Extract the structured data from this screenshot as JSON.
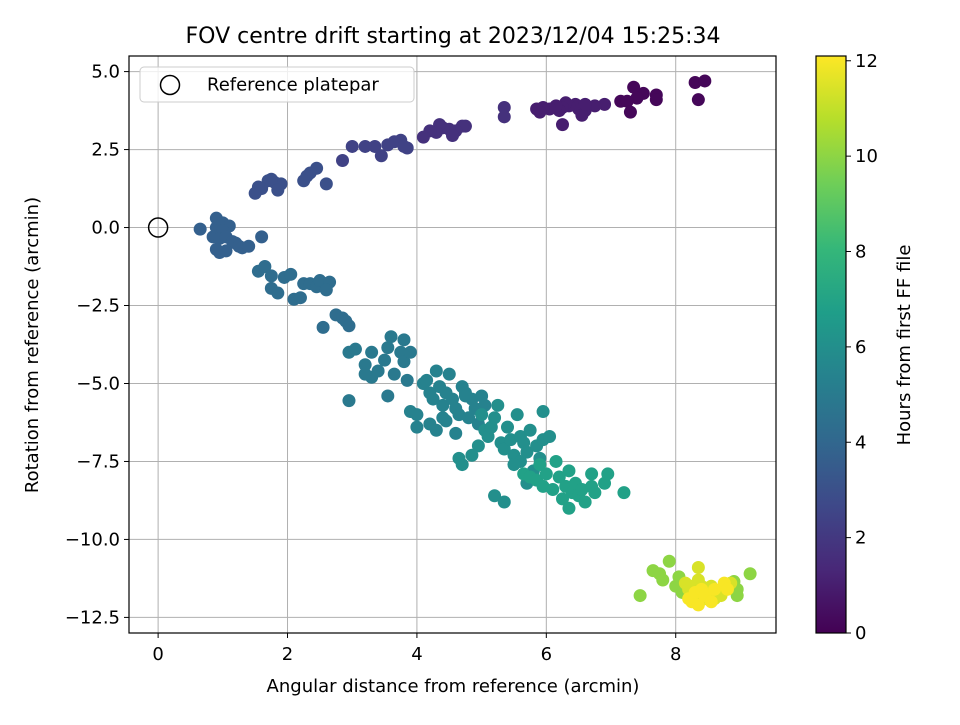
{
  "chart_data": {
    "type": "scatter",
    "title": "FOV centre drift starting at 2023/12/04 15:25:34",
    "xlabel": "Angular distance from reference (arcmin)",
    "ylabel": "Rotation from reference (arcmin)",
    "xlim": [
      -0.45,
      9.55
    ],
    "ylim": [
      -13.0,
      5.5
    ],
    "xticks": [
      0,
      2,
      4,
      6,
      8
    ],
    "xtick_labels": [
      "0",
      "2",
      "4",
      "6",
      "8"
    ],
    "yticks": [
      5.0,
      2.5,
      0.0,
      -2.5,
      -5.0,
      -7.5,
      -10.0,
      -12.5
    ],
    "ytick_labels": [
      "5.0",
      "2.5",
      "0.0",
      "−2.5",
      "−5.0",
      "−7.5",
      "−10.0",
      "−12.5"
    ],
    "grid": true,
    "legend": {
      "position": "upper-left",
      "label": "Reference platepar",
      "marker": "open-circle"
    },
    "reference_point": {
      "x": 0.0,
      "y": 0.0
    },
    "colorbar": {
      "label": "Hours from first FF file",
      "min": 0,
      "max": 12.1,
      "ticks": [
        0,
        2,
        4,
        6,
        8,
        10,
        12
      ],
      "tick_labels": [
        "0",
        "2",
        "4",
        "6",
        "8",
        "10",
        "12"
      ],
      "colormap": "viridis",
      "stops": [
        "#440154",
        "#482878",
        "#3e4989",
        "#31688e",
        "#26828e",
        "#1f9e89",
        "#35b779",
        "#6ece58",
        "#b5de2b",
        "#fde725"
      ]
    },
    "series": [
      {
        "color_value": 0.2,
        "points": [
          [
            8.3,
            4.65
          ],
          [
            8.45,
            4.7
          ],
          [
            8.35,
            4.1
          ],
          [
            7.7,
            4.25
          ],
          [
            7.7,
            4.1
          ],
          [
            7.5,
            4.3
          ],
          [
            7.35,
            4.5
          ],
          [
            7.4,
            4.15
          ],
          [
            7.15,
            4.05
          ],
          [
            7.25,
            4.05
          ],
          [
            7.3,
            3.7
          ]
        ]
      },
      {
        "color_value": 1.0,
        "points": [
          [
            6.9,
            3.95
          ],
          [
            6.75,
            3.9
          ],
          [
            6.6,
            3.75
          ],
          [
            6.5,
            3.8
          ],
          [
            6.45,
            3.95
          ],
          [
            6.35,
            3.9
          ],
          [
            6.3,
            4.0
          ],
          [
            6.25,
            3.85
          ],
          [
            6.2,
            3.75
          ],
          [
            6.15,
            3.9
          ],
          [
            6.05,
            3.8
          ],
          [
            5.95,
            3.85
          ],
          [
            5.9,
            3.7
          ],
          [
            5.85,
            3.8
          ],
          [
            6.25,
            3.3
          ],
          [
            6.55,
            3.6
          ],
          [
            6.6,
            3.95
          ]
        ]
      },
      {
        "color_value": 1.7,
        "points": [
          [
            5.35,
            3.85
          ],
          [
            5.35,
            3.55
          ],
          [
            4.75,
            3.25
          ],
          [
            4.7,
            3.25
          ],
          [
            4.6,
            3.1
          ],
          [
            4.5,
            3.15
          ],
          [
            4.4,
            3.2
          ],
          [
            4.35,
            3.3
          ],
          [
            4.3,
            3.05
          ],
          [
            4.2,
            3.1
          ],
          [
            4.1,
            2.9
          ],
          [
            4.55,
            2.95
          ]
        ]
      },
      {
        "color_value": 2.4,
        "points": [
          [
            3.85,
            2.55
          ],
          [
            3.75,
            2.8
          ],
          [
            3.65,
            2.75
          ],
          [
            3.55,
            2.65
          ],
          [
            3.35,
            2.6
          ],
          [
            3.2,
            2.6
          ],
          [
            3.0,
            2.6
          ],
          [
            2.85,
            2.15
          ],
          [
            3.45,
            2.3
          ],
          [
            3.8,
            2.6
          ]
        ]
      },
      {
        "color_value": 3.0,
        "points": [
          [
            2.6,
            1.4
          ],
          [
            2.45,
            1.9
          ],
          [
            2.35,
            1.75
          ],
          [
            2.3,
            1.65
          ],
          [
            2.25,
            1.5
          ],
          [
            1.9,
            1.4
          ],
          [
            1.8,
            1.45
          ],
          [
            1.75,
            1.55
          ],
          [
            1.7,
            1.5
          ],
          [
            1.6,
            1.25
          ],
          [
            1.55,
            1.3
          ],
          [
            1.5,
            1.1
          ],
          [
            1.85,
            1.2
          ]
        ]
      },
      {
        "color_value": 3.7,
        "points": [
          [
            0.65,
            -0.05
          ],
          [
            0.9,
            0.0
          ],
          [
            0.9,
            0.3
          ],
          [
            1.0,
            0.15
          ],
          [
            1.1,
            0.05
          ],
          [
            1.0,
            -0.1
          ],
          [
            0.85,
            -0.3
          ],
          [
            0.95,
            -0.35
          ],
          [
            1.05,
            -0.3
          ],
          [
            1.15,
            -0.45
          ],
          [
            1.2,
            -0.5
          ],
          [
            1.25,
            -0.6
          ],
          [
            1.3,
            -0.65
          ],
          [
            1.4,
            -0.6
          ],
          [
            1.6,
            -0.3
          ],
          [
            1.05,
            -0.75
          ],
          [
            0.95,
            -0.8
          ],
          [
            0.9,
            -0.7
          ]
        ]
      },
      {
        "color_value": 4.3,
        "points": [
          [
            1.55,
            -1.4
          ],
          [
            1.65,
            -1.25
          ],
          [
            1.75,
            -1.55
          ],
          [
            1.75,
            -1.95
          ],
          [
            1.85,
            -2.1
          ],
          [
            1.95,
            -1.6
          ],
          [
            2.05,
            -1.5
          ],
          [
            2.1,
            -2.3
          ],
          [
            2.2,
            -2.25
          ],
          [
            2.25,
            -1.8
          ],
          [
            2.35,
            -1.8
          ],
          [
            2.45,
            -1.9
          ],
          [
            2.5,
            -1.7
          ],
          [
            2.65,
            -1.75
          ],
          [
            2.6,
            -2.0
          ],
          [
            2.55,
            -3.2
          ],
          [
            2.75,
            -2.8
          ],
          [
            2.85,
            -2.9
          ],
          [
            2.9,
            -3.0
          ],
          [
            2.95,
            -3.15
          ]
        ]
      },
      {
        "color_value": 4.9,
        "points": [
          [
            2.95,
            -4.0
          ],
          [
            3.05,
            -3.9
          ],
          [
            3.2,
            -4.4
          ],
          [
            3.3,
            -4.0
          ],
          [
            3.3,
            -4.8
          ],
          [
            3.4,
            -4.6
          ],
          [
            3.5,
            -4.25
          ],
          [
            3.55,
            -3.85
          ],
          [
            3.6,
            -3.5
          ],
          [
            3.65,
            -4.7
          ],
          [
            3.75,
            -4.0
          ],
          [
            3.8,
            -4.3
          ],
          [
            3.55,
            -5.4
          ],
          [
            3.8,
            -3.6
          ],
          [
            3.9,
            -4.0
          ],
          [
            3.2,
            -4.7
          ],
          [
            2.95,
            -5.55
          ],
          [
            3.85,
            -4.9
          ]
        ]
      },
      {
        "color_value": 5.4,
        "points": [
          [
            3.9,
            -5.9
          ],
          [
            4.0,
            -6.0
          ],
          [
            4.0,
            -6.4
          ],
          [
            4.1,
            -5.0
          ],
          [
            4.15,
            -4.9
          ],
          [
            4.2,
            -5.3
          ],
          [
            4.3,
            -4.6
          ],
          [
            4.35,
            -5.1
          ],
          [
            4.4,
            -5.7
          ],
          [
            4.4,
            -6.1
          ],
          [
            4.45,
            -6.2
          ],
          [
            4.5,
            -4.7
          ],
          [
            4.55,
            -5.5
          ],
          [
            4.6,
            -5.8
          ],
          [
            4.65,
            -6.0
          ],
          [
            4.7,
            -5.1
          ],
          [
            4.75,
            -5.3
          ],
          [
            4.8,
            -6.1
          ],
          [
            4.85,
            -5.5
          ],
          [
            4.9,
            -5.8
          ],
          [
            4.95,
            -6.3
          ],
          [
            4.2,
            -6.3
          ],
          [
            4.3,
            -6.5
          ],
          [
            4.6,
            -6.6
          ],
          [
            4.75,
            -5.4
          ],
          [
            5.0,
            -5.4
          ],
          [
            5.05,
            -5.7
          ],
          [
            4.25,
            -5.5
          ],
          [
            4.45,
            -5.3
          ]
        ]
      },
      {
        "color_value": 6.0,
        "points": [
          [
            5.0,
            -6.0
          ],
          [
            5.05,
            -6.5
          ],
          [
            5.1,
            -6.7
          ],
          [
            5.15,
            -6.4
          ],
          [
            5.2,
            -6.1
          ],
          [
            5.25,
            -5.7
          ],
          [
            5.3,
            -6.9
          ],
          [
            5.35,
            -7.1
          ],
          [
            5.4,
            -6.4
          ],
          [
            5.45,
            -6.8
          ],
          [
            5.5,
            -7.3
          ],
          [
            5.55,
            -6.0
          ],
          [
            5.6,
            -6.7
          ],
          [
            5.6,
            -7.5
          ],
          [
            5.65,
            -6.9
          ],
          [
            5.7,
            -7.2
          ],
          [
            5.75,
            -6.5
          ],
          [
            5.8,
            -7.8
          ],
          [
            5.85,
            -7.0
          ],
          [
            5.9,
            -7.4
          ],
          [
            5.95,
            -5.9
          ],
          [
            5.95,
            -6.8
          ],
          [
            6.05,
            -6.7
          ],
          [
            4.95,
            -7.0
          ],
          [
            4.85,
            -7.3
          ],
          [
            4.7,
            -7.6
          ],
          [
            4.65,
            -7.4
          ],
          [
            5.2,
            -8.6
          ],
          [
            5.35,
            -8.8
          ],
          [
            5.5,
            -7.6
          ],
          [
            5.7,
            -8.2
          ]
        ]
      },
      {
        "color_value": 6.9,
        "points": [
          [
            5.65,
            -7.9
          ],
          [
            5.75,
            -8.0
          ],
          [
            5.85,
            -8.1
          ],
          [
            5.9,
            -7.6
          ],
          [
            5.95,
            -8.3
          ],
          [
            6.0,
            -7.9
          ],
          [
            6.1,
            -8.4
          ],
          [
            6.15,
            -7.5
          ],
          [
            6.2,
            -8.0
          ],
          [
            6.25,
            -8.7
          ],
          [
            6.3,
            -8.3
          ],
          [
            6.35,
            -7.8
          ],
          [
            6.4,
            -8.5
          ],
          [
            6.45,
            -8.2
          ],
          [
            6.5,
            -8.6
          ],
          [
            6.55,
            -8.4
          ],
          [
            6.6,
            -8.8
          ],
          [
            6.7,
            -8.3
          ],
          [
            6.75,
            -8.5
          ],
          [
            6.9,
            -8.2
          ],
          [
            6.95,
            -7.9
          ],
          [
            6.7,
            -7.9
          ],
          [
            7.2,
            -8.5
          ],
          [
            6.35,
            -9.0
          ]
        ]
      },
      {
        "color_value": 10.0,
        "points": [
          [
            7.65,
            -11.0
          ],
          [
            7.75,
            -11.1
          ],
          [
            7.8,
            -11.3
          ],
          [
            7.9,
            -10.7
          ],
          [
            7.45,
            -11.8
          ],
          [
            8.0,
            -11.5
          ],
          [
            8.1,
            -11.7
          ],
          [
            8.05,
            -11.2
          ],
          [
            9.15,
            -11.1
          ],
          [
            8.9,
            -11.35
          ],
          [
            8.95,
            -11.8
          ],
          [
            8.95,
            -11.6
          ]
        ]
      },
      {
        "color_value": 11.4,
        "points": [
          [
            8.15,
            -11.4
          ],
          [
            8.2,
            -11.6
          ],
          [
            8.25,
            -11.5
          ],
          [
            8.3,
            -11.8
          ],
          [
            8.35,
            -11.3
          ],
          [
            8.4,
            -11.5
          ],
          [
            8.45,
            -11.9
          ],
          [
            8.5,
            -11.7
          ],
          [
            8.55,
            -11.5
          ],
          [
            8.35,
            -10.9
          ],
          [
            8.6,
            -11.9
          ],
          [
            8.7,
            -11.7
          ],
          [
            8.75,
            -11.5
          ],
          [
            8.85,
            -11.4
          ],
          [
            8.7,
            -11.8
          ]
        ]
      },
      {
        "color_value": 12.0,
        "points": [
          [
            8.2,
            -11.9
          ],
          [
            8.25,
            -12.0
          ],
          [
            8.35,
            -12.1
          ],
          [
            8.3,
            -11.7
          ],
          [
            8.4,
            -11.6
          ],
          [
            8.45,
            -11.8
          ],
          [
            8.55,
            -12.0
          ],
          [
            8.6,
            -11.6
          ],
          [
            8.75,
            -11.4
          ],
          [
            8.8,
            -11.6
          ]
        ]
      }
    ]
  }
}
